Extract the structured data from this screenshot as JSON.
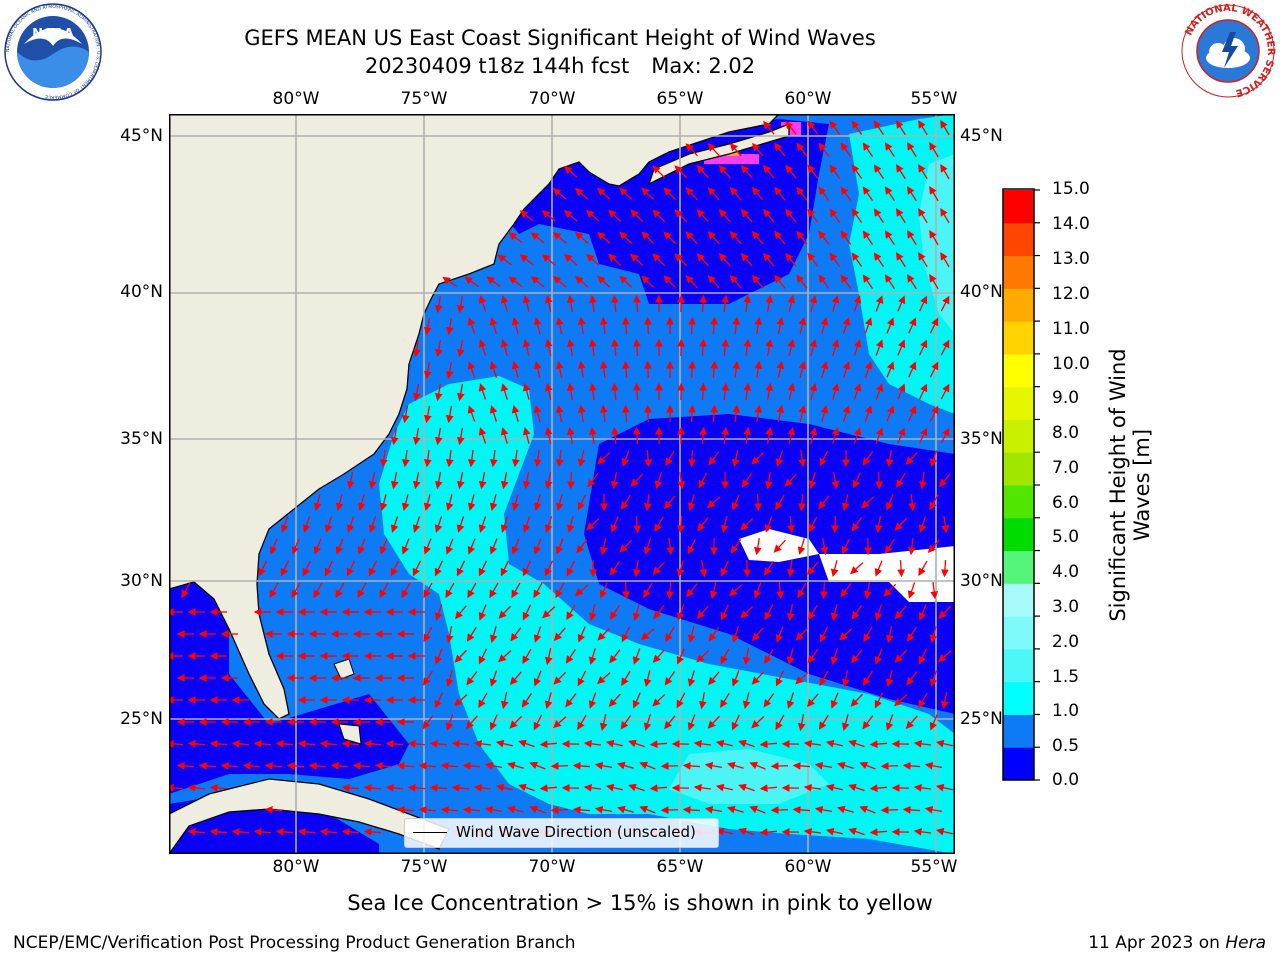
{
  "header": {
    "title_line1": "GEFS MEAN US East Coast Significant Height of Wind Waves",
    "title_line2": "20230409 t18z 144h fcst",
    "max_label": "Max: 2.02"
  },
  "map": {
    "lon_labels": [
      "80°W",
      "75°W",
      "70°W",
      "65°W",
      "60°W",
      "55°W"
    ],
    "lat_labels": [
      "45°N",
      "40°N",
      "35°N",
      "30°N",
      "25°N"
    ],
    "colors": {
      "land": "#eeede0",
      "level_0_0_5": "#0a00f5",
      "level_0_5_1_0": "#0f7af5",
      "level_1_0_1_5": "#00f5f5",
      "level_1_5_2_0": "#4cf5f5",
      "ice_pink": "#ff3cf0",
      "ice_orange": "#ffa030",
      "arrow": "#ff0000",
      "grid": "#b0b0b0"
    },
    "legend_text": "Wind Wave Direction (unscaled)"
  },
  "colorbar": {
    "tick_labels": [
      "15.0",
      "14.0",
      "13.0",
      "12.0",
      "11.0",
      "10.0",
      "9.0",
      "8.0",
      "7.0",
      "6.0",
      "5.0",
      "4.0",
      "3.0",
      "2.0",
      "1.5",
      "1.0",
      "0.5",
      "0.0"
    ],
    "label_line1": "Significant Height of Wind",
    "label_line2": "Waves [m]",
    "colors": [
      "#0000ff",
      "#0f7af5",
      "#00ffff",
      "#4cf7f7",
      "#7ffafa",
      "#a8fafa",
      "#55f57a",
      "#00dc00",
      "#50e600",
      "#a0e600",
      "#c8f000",
      "#e6f500",
      "#ffff00",
      "#ffd200",
      "#ffaa00",
      "#ff7800",
      "#ff4600",
      "#ff0000"
    ]
  },
  "footer": {
    "sea_ice_note": "Sea Ice Concentration > 15% is shown in pink to yellow",
    "branch": "NCEP/EMC/Verification Post Processing Product Generation Branch",
    "date_prefix": "11 Apr 2023 on",
    "machine": "Hera"
  },
  "logos": {
    "left": "NOAA",
    "left_ring": "NATIONAL OCEANIC AND ATMOSPHERIC ADMINISTRATION · U.S. DEPARTMENT OF COMMERCE",
    "right_ring": "NATIONAL WEATHER SERVICE"
  }
}
